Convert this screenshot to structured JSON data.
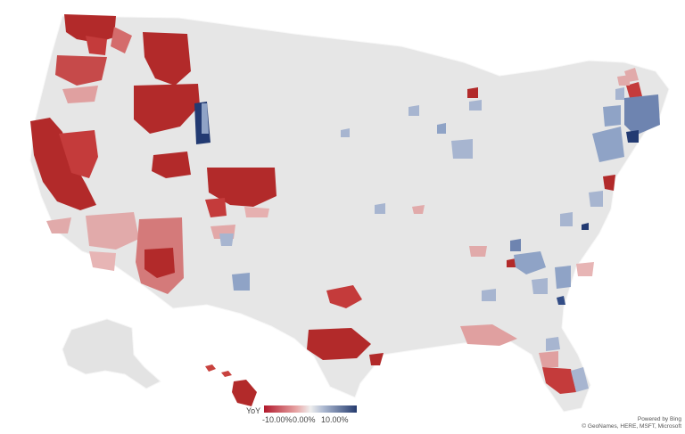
{
  "legend": {
    "title": "YoY",
    "min_label": "-10.00%",
    "mid_label": "0.00%",
    "max_label": "10.00%",
    "colors": {
      "negative": "#b2182b",
      "neutral": "#eeeeee",
      "positive": "#253b6e"
    }
  },
  "credit": {
    "powered_by": "Powered by Bing",
    "copyright": "© GeoNames, HERE, MSFT, Microsoft"
  },
  "map": {
    "base_color": "#e6e6e6",
    "border_color": "#ffffff"
  }
}
